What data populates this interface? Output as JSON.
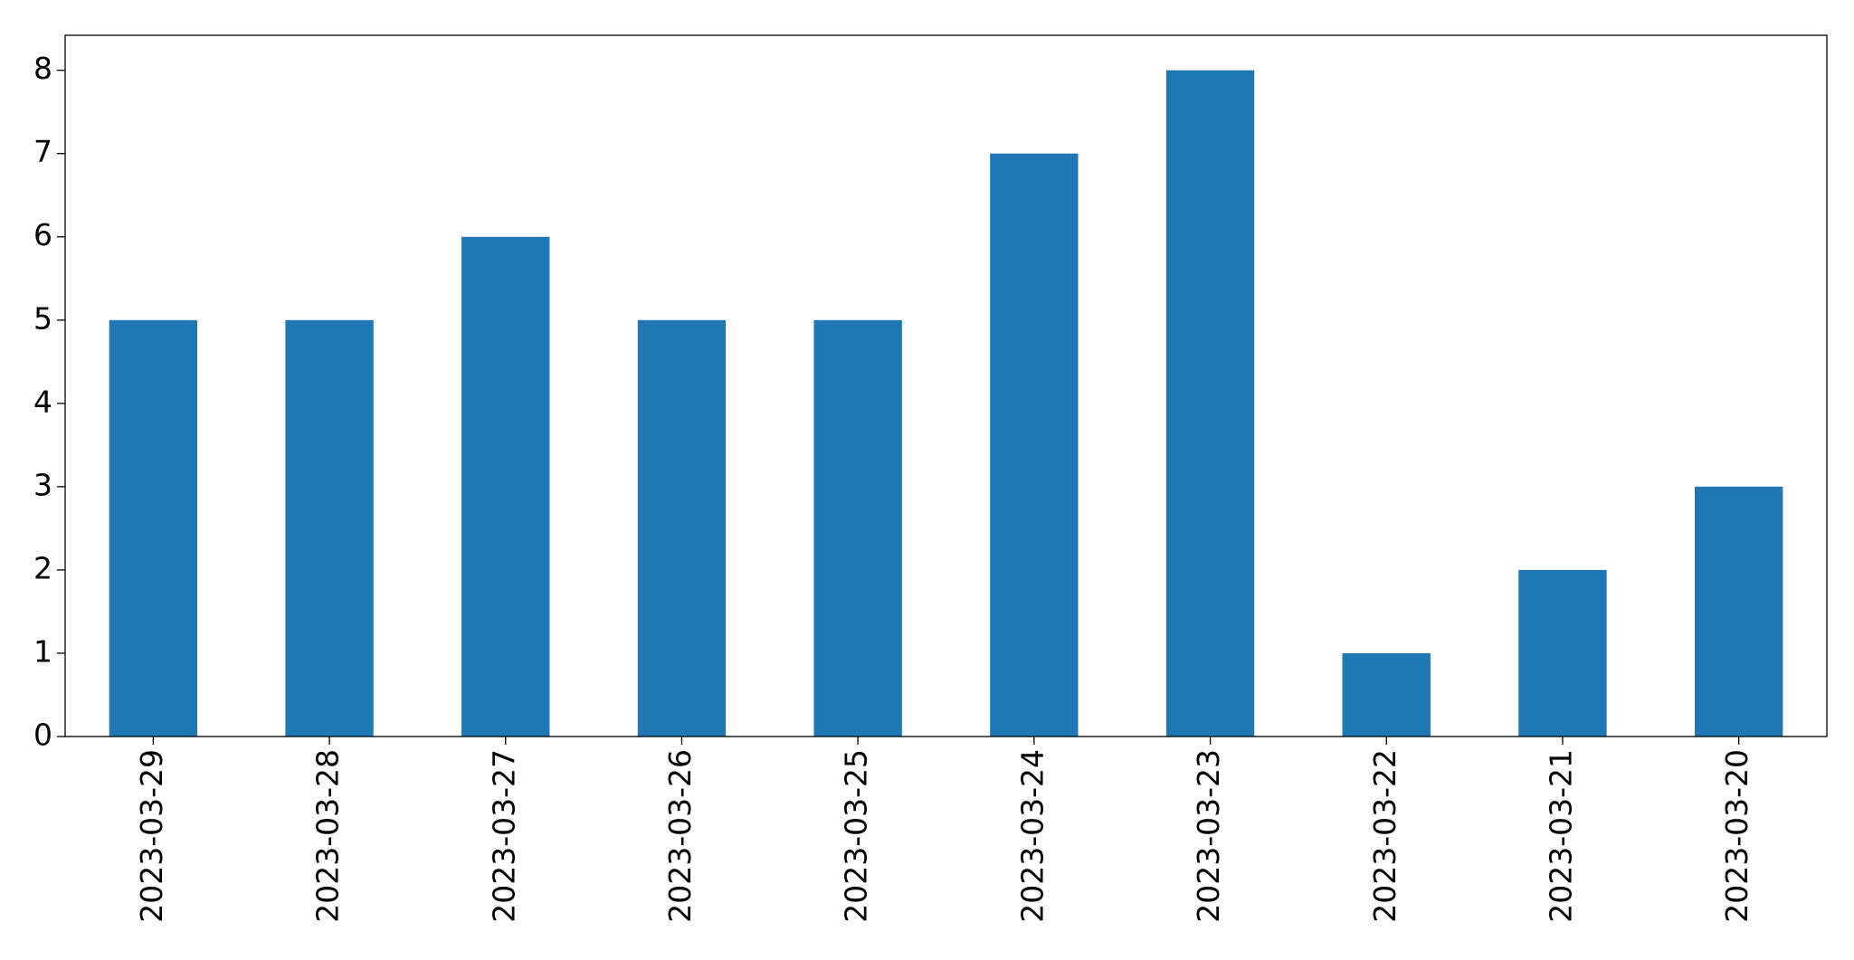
{
  "chart_data": {
    "type": "bar",
    "categories": [
      "2023-03-29",
      "2023-03-28",
      "2023-03-27",
      "2023-03-26",
      "2023-03-25",
      "2023-03-24",
      "2023-03-23",
      "2023-03-22",
      "2023-03-21",
      "2023-03-20"
    ],
    "values": [
      5,
      5,
      6,
      5,
      5,
      7,
      8,
      1,
      2,
      3
    ],
    "color": "#1f77b4",
    "ylim": [
      0,
      8.42
    ],
    "yticks": [
      0,
      1,
      2,
      3,
      4,
      5,
      6,
      7,
      8
    ],
    "grid": false
  }
}
